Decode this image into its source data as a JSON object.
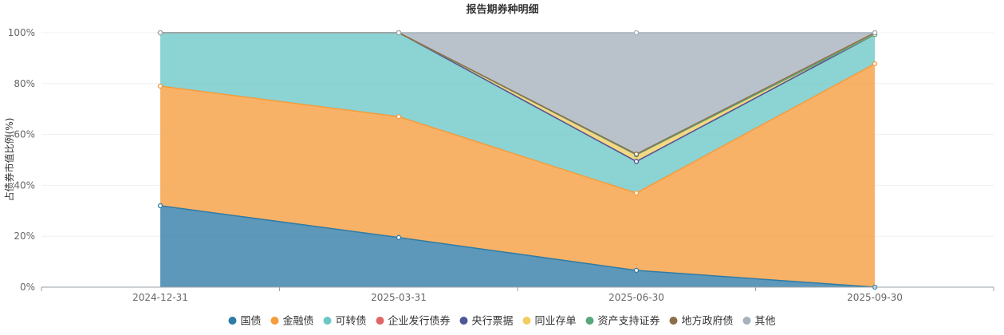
{
  "chart_data": {
    "type": "area",
    "stacked": true,
    "title": "报告期券种明细",
    "ylabel": "占债券市值比例(%)",
    "xlabel": "",
    "categories": [
      "2024-12-31",
      "2025-03-31",
      "2025-06-30",
      "2025-09-30"
    ],
    "ylim": [
      0,
      100
    ],
    "yticks": [
      "0%",
      "20%",
      "40%",
      "60%",
      "80%",
      "100%"
    ],
    "grid": true,
    "legend_position": "bottom",
    "series": [
      {
        "name": "国债",
        "color": "#2f7ba6",
        "values": [
          32.0,
          19.5,
          6.6,
          0.0
        ]
      },
      {
        "name": "金融债",
        "color": "#f59c3c",
        "values": [
          47.0,
          47.5,
          30.4,
          87.8
        ]
      },
      {
        "name": "可转债",
        "color": "#6cc7c7",
        "values": [
          21.0,
          33.0,
          12.4,
          11.5
        ]
      },
      {
        "name": "企业发行债券",
        "color": "#e06666",
        "values": [
          0.0,
          0.0,
          0.0,
          0.0
        ]
      },
      {
        "name": "央行票据",
        "color": "#4f5797",
        "values": [
          0.0,
          0.0,
          0.0,
          0.0
        ]
      },
      {
        "name": "同业存单",
        "color": "#f2cd60",
        "values": [
          0.0,
          0.0,
          2.6,
          0.0
        ]
      },
      {
        "name": "资产支持证券",
        "color": "#5aa77a",
        "values": [
          0.0,
          0.0,
          0.0,
          0.0
        ]
      },
      {
        "name": "地方政府债",
        "color": "#8c6e4a",
        "values": [
          0.0,
          0.0,
          0.3,
          0.7
        ]
      },
      {
        "name": "其他",
        "color": "#a5b1bc",
        "values": [
          0.0,
          0.0,
          47.7,
          0.0
        ]
      }
    ]
  }
}
